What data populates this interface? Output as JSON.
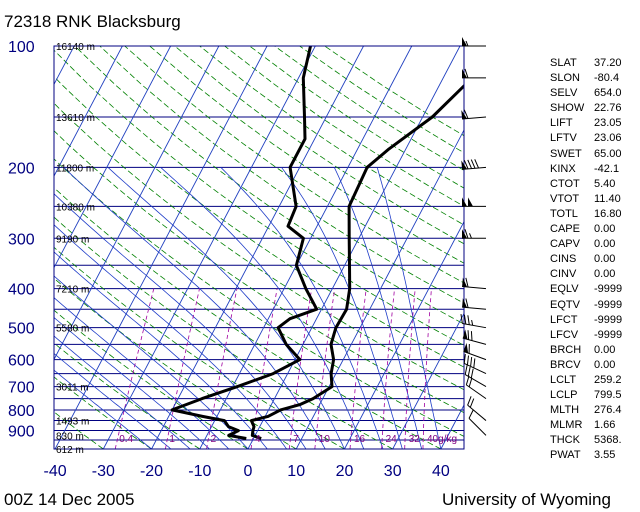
{
  "header": {
    "title": "72318 RNK Blacksburg"
  },
  "footer": {
    "date": "00Z 14 Dec 2005",
    "source": "University of Wyoming"
  },
  "chart_data": {
    "type": "skew-t",
    "xlim": [
      -40,
      45
    ],
    "ylim_hpa": [
      1000,
      100
    ],
    "pressure_ticks": [
      "100",
      "200",
      "300",
      "400",
      "500",
      "600",
      "700",
      "800",
      "900"
    ],
    "temperature_ticks": [
      "-40",
      "-30",
      "-20",
      "-10",
      "0",
      "10",
      "20",
      "30",
      "40"
    ],
    "height_labels": [
      {
        "p": 100,
        "text": "16140 m"
      },
      {
        "p": 150,
        "text": "13610 m"
      },
      {
        "p": 200,
        "text": "11800 m"
      },
      {
        "p": 250,
        "text": "10380 m"
      },
      {
        "p": 300,
        "text": "9190 m"
      },
      {
        "p": 400,
        "text": "7210 m"
      },
      {
        "p": 500,
        "text": "5580 m"
      },
      {
        "p": 700,
        "text": "3011 m"
      },
      {
        "p": 850,
        "text": "1493 m"
      },
      {
        "p": 925,
        "text": "830 m"
      },
      {
        "p": 1000,
        "text": "612 m"
      }
    ],
    "mixing_ratio_labels": [
      {
        "w": 0.4,
        "text": "0.4"
      },
      {
        "w": 1,
        "text": "1"
      },
      {
        "w": 2,
        "text": "2"
      },
      {
        "w": 4,
        "text": "4"
      },
      {
        "w": 7,
        "text": "7"
      },
      {
        "w": 10,
        "text": "10"
      },
      {
        "w": 16,
        "text": "16"
      },
      {
        "w": 24,
        "text": "24"
      },
      {
        "w": 32,
        "text": "32"
      },
      {
        "w": 40,
        "text": "40g/kg"
      }
    ],
    "series": [
      {
        "name": "",
        "color": "#000000",
        "points": [
          [
            942,
            1.6
          ],
          [
            925,
            -0.6
          ],
          [
            900,
            -1.0
          ],
          [
            880,
            -1.2
          ],
          [
            850,
            -2.4
          ],
          [
            830,
            0.6
          ],
          [
            800,
            2.5
          ],
          [
            775,
            6.0
          ],
          [
            750,
            8.0
          ],
          [
            700,
            10.6
          ],
          [
            650,
            9.0
          ],
          [
            600,
            8.0
          ],
          [
            550,
            5.8
          ],
          [
            500,
            5.0
          ],
          [
            450,
            5.2
          ],
          [
            400,
            3.6
          ],
          [
            350,
            1.0
          ],
          [
            300,
            -2.0
          ],
          [
            250,
            -5.5
          ],
          [
            200,
            -6.0
          ],
          [
            180,
            -3.5
          ],
          [
            150,
            2.0
          ],
          [
            120,
            6.0
          ],
          [
            100,
            10.0
          ]
        ]
      },
      {
        "name": "",
        "color": "#000000",
        "points": [
          [
            942,
            -1.5
          ],
          [
            925,
            -5.5
          ],
          [
            900,
            -4.0
          ],
          [
            880,
            -6.5
          ],
          [
            850,
            -8.0
          ],
          [
            830,
            -13.0
          ],
          [
            800,
            -20.0
          ],
          [
            750,
            -15.0
          ],
          [
            700,
            -9.0
          ],
          [
            650,
            -3.0
          ],
          [
            600,
            1.0
          ],
          [
            550,
            -3.5
          ],
          [
            500,
            -7.0
          ],
          [
            475,
            -5.5
          ],
          [
            450,
            -1.0
          ],
          [
            400,
            -5.5
          ],
          [
            350,
            -10.0
          ],
          [
            300,
            -11.5
          ],
          [
            280,
            -16.0
          ],
          [
            250,
            -16.5
          ],
          [
            200,
            -22.0
          ],
          [
            170,
            -22.0
          ],
          [
            150,
            -24.5
          ],
          [
            120,
            -29.0
          ],
          [
            100,
            -31.0
          ]
        ]
      }
    ],
    "indices": [
      {
        "key": "SLAT",
        "value": "37.20"
      },
      {
        "key": "SLON",
        "value": "-80.4"
      },
      {
        "key": "SELV",
        "value": "654.0"
      },
      {
        "key": "SHOW",
        "value": "22.76"
      },
      {
        "key": "LIFT",
        "value": "23.05"
      },
      {
        "key": "LFTV",
        "value": "23.06"
      },
      {
        "key": "SWET",
        "value": "65.00"
      },
      {
        "key": "KINX",
        "value": "-42.1"
      },
      {
        "key": "CTOT",
        "value": "5.40"
      },
      {
        "key": "VTOT",
        "value": "11.40"
      },
      {
        "key": "TOTL",
        "value": "16.80"
      },
      {
        "key": "CAPE",
        "value": "0.00"
      },
      {
        "key": "CAPV",
        "value": "0.00"
      },
      {
        "key": "CINS",
        "value": "0.00"
      },
      {
        "key": "CINV",
        "value": "0.00"
      },
      {
        "key": "EQLV",
        "value": "-9999"
      },
      {
        "key": "EQTV",
        "value": "-9999"
      },
      {
        "key": "LFCT",
        "value": "-9999"
      },
      {
        "key": "LFCV",
        "value": "-9999"
      },
      {
        "key": "BRCH",
        "value": "0.00"
      },
      {
        "key": "BRCV",
        "value": "0.00"
      },
      {
        "key": "LCLT",
        "value": "259.2"
      },
      {
        "key": "LCLP",
        "value": "799.5"
      },
      {
        "key": "MLTH",
        "value": "276.4"
      },
      {
        "key": "MLMR",
        "value": "1.66"
      },
      {
        "key": "THCK",
        "value": "5368."
      },
      {
        "key": "PWAT",
        "value": "3.55"
      }
    ],
    "wind_barbs": [
      {
        "p": 100,
        "dir": 270,
        "speed_kt": 55
      },
      {
        "p": 120,
        "dir": 270,
        "speed_kt": 60
      },
      {
        "p": 150,
        "dir": 265,
        "speed_kt": 60
      },
      {
        "p": 200,
        "dir": 265,
        "speed_kt": 90
      },
      {
        "p": 250,
        "dir": 270,
        "speed_kt": 100
      },
      {
        "p": 300,
        "dir": 270,
        "speed_kt": 65
      },
      {
        "p": 400,
        "dir": 275,
        "speed_kt": 60
      },
      {
        "p": 450,
        "dir": 275,
        "speed_kt": 60
      },
      {
        "p": 500,
        "dir": 280,
        "speed_kt": 35
      },
      {
        "p": 550,
        "dir": 285,
        "speed_kt": 70
      },
      {
        "p": 600,
        "dir": 290,
        "speed_kt": 60
      },
      {
        "p": 650,
        "dir": 295,
        "speed_kt": 40
      },
      {
        "p": 700,
        "dir": 300,
        "speed_kt": 30
      },
      {
        "p": 750,
        "dir": 305,
        "speed_kt": 20
      },
      {
        "p": 850,
        "dir": 310,
        "speed_kt": 20
      },
      {
        "p": 925,
        "dir": 315,
        "speed_kt": 10
      }
    ]
  }
}
